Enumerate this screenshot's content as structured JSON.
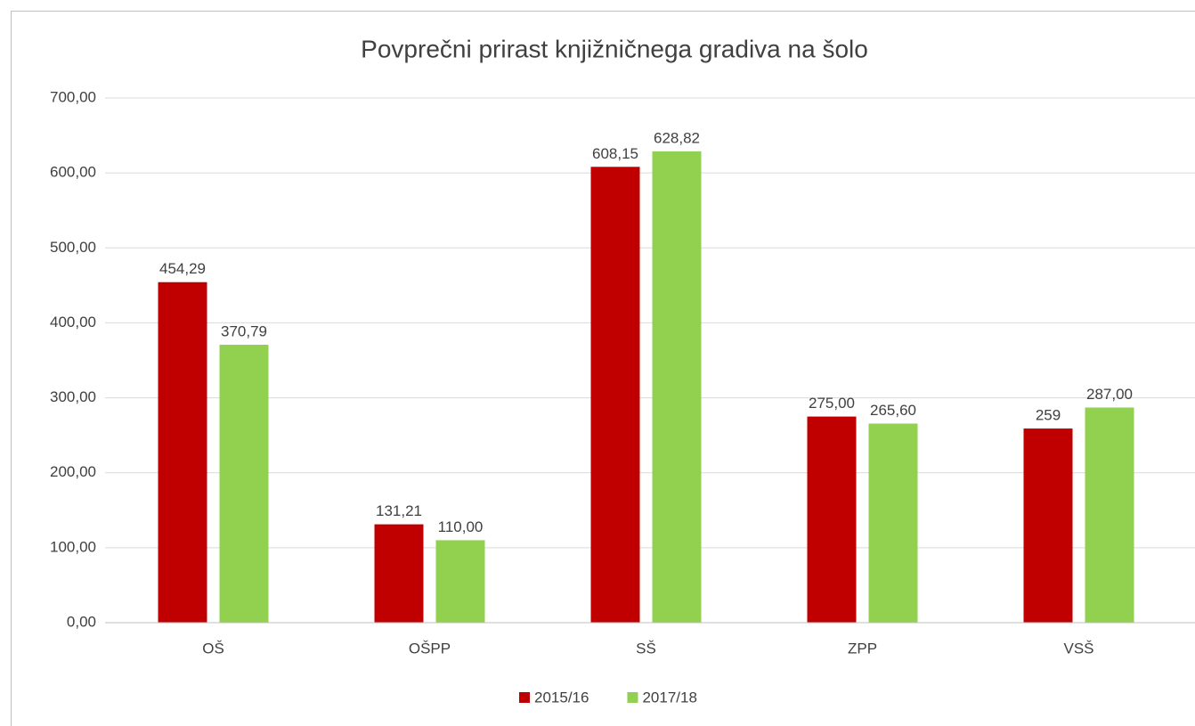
{
  "chart_data": {
    "type": "bar",
    "title": "Povprečni prirast knjižničnega gradiva na šolo",
    "categories": [
      "OŠ",
      "OŠPP",
      "SŠ",
      "ZPP",
      "VSŠ"
    ],
    "series": [
      {
        "name": "2015/16",
        "color": "#c00000",
        "values": [
          454.29,
          131.21,
          608.15,
          275.0,
          259
        ],
        "value_labels": [
          "454,29",
          "131,21",
          "608,15",
          "275,00",
          "259"
        ]
      },
      {
        "name": "2017/18",
        "color": "#92d050",
        "values": [
          370.79,
          110.0,
          628.82,
          265.6,
          287.0
        ],
        "value_labels": [
          "370,79",
          "110,00",
          "628,82",
          "265,60",
          "287,00"
        ]
      }
    ],
    "ylim": [
      0,
      700
    ],
    "yticks": [
      {
        "value": 0,
        "label": "0,00"
      },
      {
        "value": 100,
        "label": "100,00"
      },
      {
        "value": 200,
        "label": "200,00"
      },
      {
        "value": 300,
        "label": "300,00"
      },
      {
        "value": 400,
        "label": "400,00"
      },
      {
        "value": 500,
        "label": "500,00"
      },
      {
        "value": 600,
        "label": "600,00"
      },
      {
        "value": 700,
        "label": "700,00"
      }
    ],
    "grid": true,
    "legend": "bottom"
  }
}
